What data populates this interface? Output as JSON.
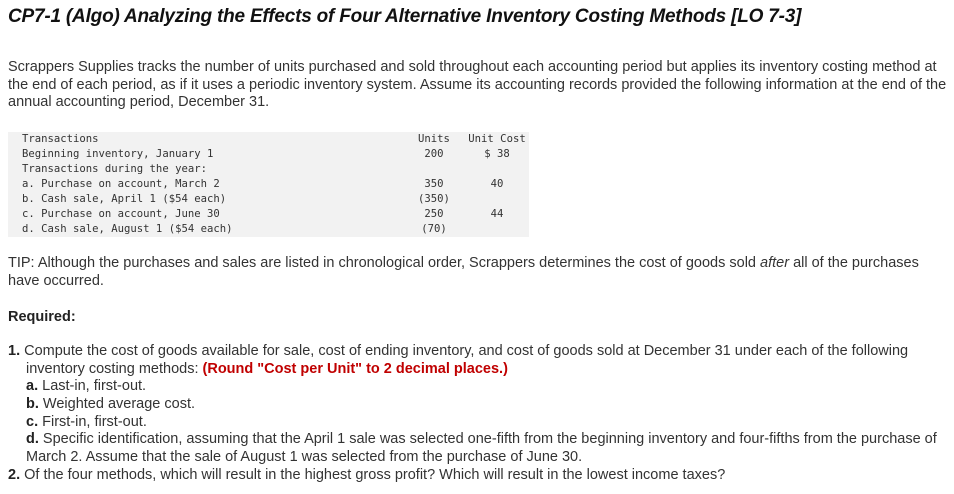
{
  "title": "CP7-1 (Algo) Analyzing the Effects of Four Alternative Inventory Costing Methods [LO 7-3]",
  "intro": "Scrappers Supplies tracks the number of units purchased and sold throughout each accounting period but applies its inventory costing method at the end of each period, as if it uses a periodic inventory system. Assume its accounting records provided the following information at the end of the annual accounting period, December 31.",
  "table": {
    "headers": {
      "label": "Transactions",
      "units": "Units",
      "unit_cost": "Unit Cost"
    },
    "rows": [
      {
        "label": "Beginning inventory, January 1",
        "units": "200",
        "cost": "$ 38"
      },
      {
        "label": "Transactions during the year:",
        "units": "",
        "cost": ""
      },
      {
        "label": "a. Purchase on account, March 2",
        "units": "350",
        "cost": "40"
      },
      {
        "label": "b. Cash sale, April 1 ($54 each)",
        "units": "(350)",
        "cost": ""
      },
      {
        "label": "c. Purchase on account, June 30",
        "units": "250",
        "cost": "44"
      },
      {
        "label": "d. Cash sale, August 1 ($54 each)",
        "units": "(70)",
        "cost": ""
      }
    ]
  },
  "tip": {
    "before": "TIP: Although the purchases and sales are listed in chronological order, Scrappers determines the cost of goods sold ",
    "emph": "after",
    "after": " all of the purchases have occurred."
  },
  "required_label": "Required:",
  "q1": {
    "num": "1.",
    "text": "Compute the cost of goods available for sale, cost of ending inventory, and cost of goods sold at December 31 under each of the following inventory costing methods: ",
    "note": "(Round \"Cost per Unit\" to 2 decimal places.)",
    "items": [
      {
        "letter": "a.",
        "text": "Last-in, first-out."
      },
      {
        "letter": "b.",
        "text": "Weighted average cost."
      },
      {
        "letter": "c.",
        "text": "First-in, first-out."
      },
      {
        "letter": "d.",
        "text": "Specific identification, assuming that the April 1 sale was selected one-fifth from the beginning inventory and four-fifths from the purchase of March 2. Assume that the sale of August 1 was selected from the purchase of June 30."
      }
    ]
  },
  "q2": {
    "num": "2.",
    "text": "Of the four methods, which will result in the highest gross profit? Which will result in the lowest income taxes?"
  }
}
